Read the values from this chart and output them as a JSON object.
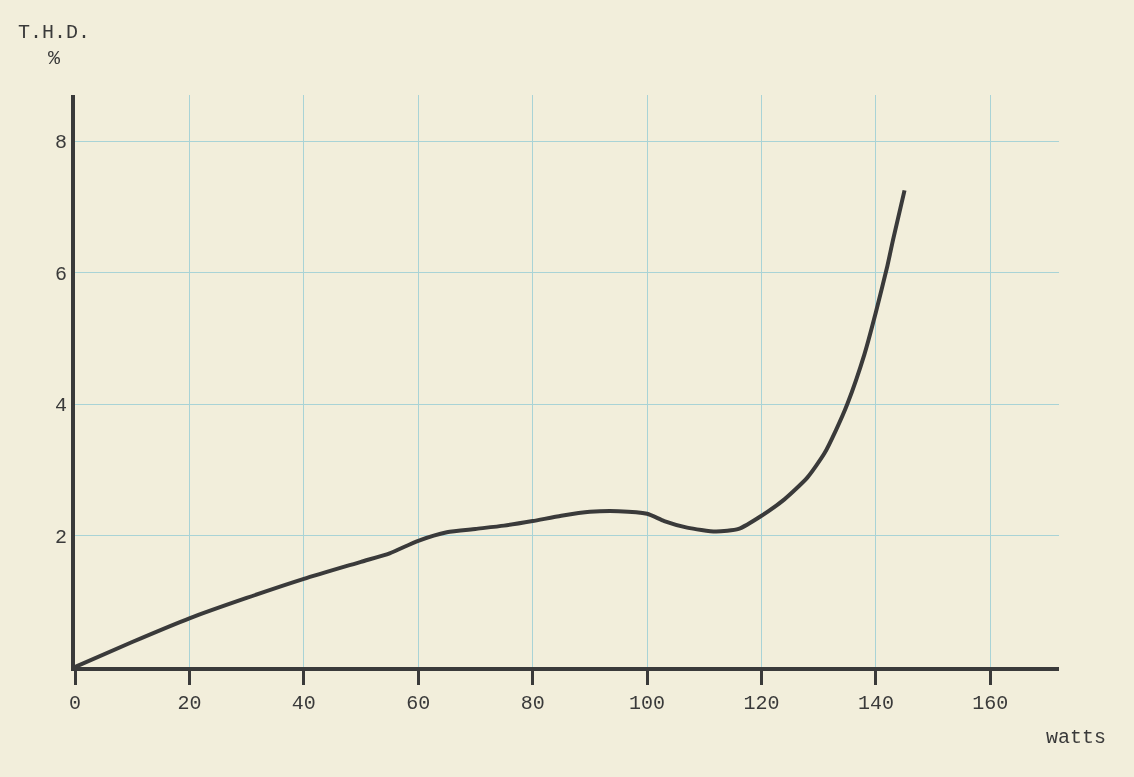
{
  "chart_data": {
    "type": "line",
    "xlabel": "watts",
    "ylabel": "T.H.D.\n%",
    "x": [
      0,
      10,
      20,
      30,
      40,
      50,
      55,
      60,
      65,
      70,
      75,
      80,
      85,
      90,
      95,
      100,
      103,
      107,
      112,
      116,
      120,
      124,
      128,
      131,
      133,
      135,
      138,
      140,
      142,
      143,
      145
    ],
    "series": [
      {
        "color": "#3a3a3a",
        "values": [
          0,
          0.38,
          0.74,
          1.05,
          1.34,
          1.6,
          1.73,
          1.92,
          2.05,
          2.1,
          2.15,
          2.22,
          2.3,
          2.36,
          2.37,
          2.33,
          2.22,
          2.12,
          2.06,
          2.1,
          2.3,
          2.55,
          2.88,
          3.25,
          3.6,
          4.0,
          4.76,
          5.4,
          6.1,
          6.5,
          7.25
        ]
      }
    ],
    "xlim": [
      0,
      172
    ],
    "ylim": [
      0,
      8.7
    ],
    "xticks": [
      0,
      20,
      40,
      60,
      80,
      100,
      120,
      140,
      160
    ],
    "yticks": [
      2,
      4,
      6,
      8
    ],
    "grid": true,
    "line_style": "solid",
    "marker": "none"
  }
}
